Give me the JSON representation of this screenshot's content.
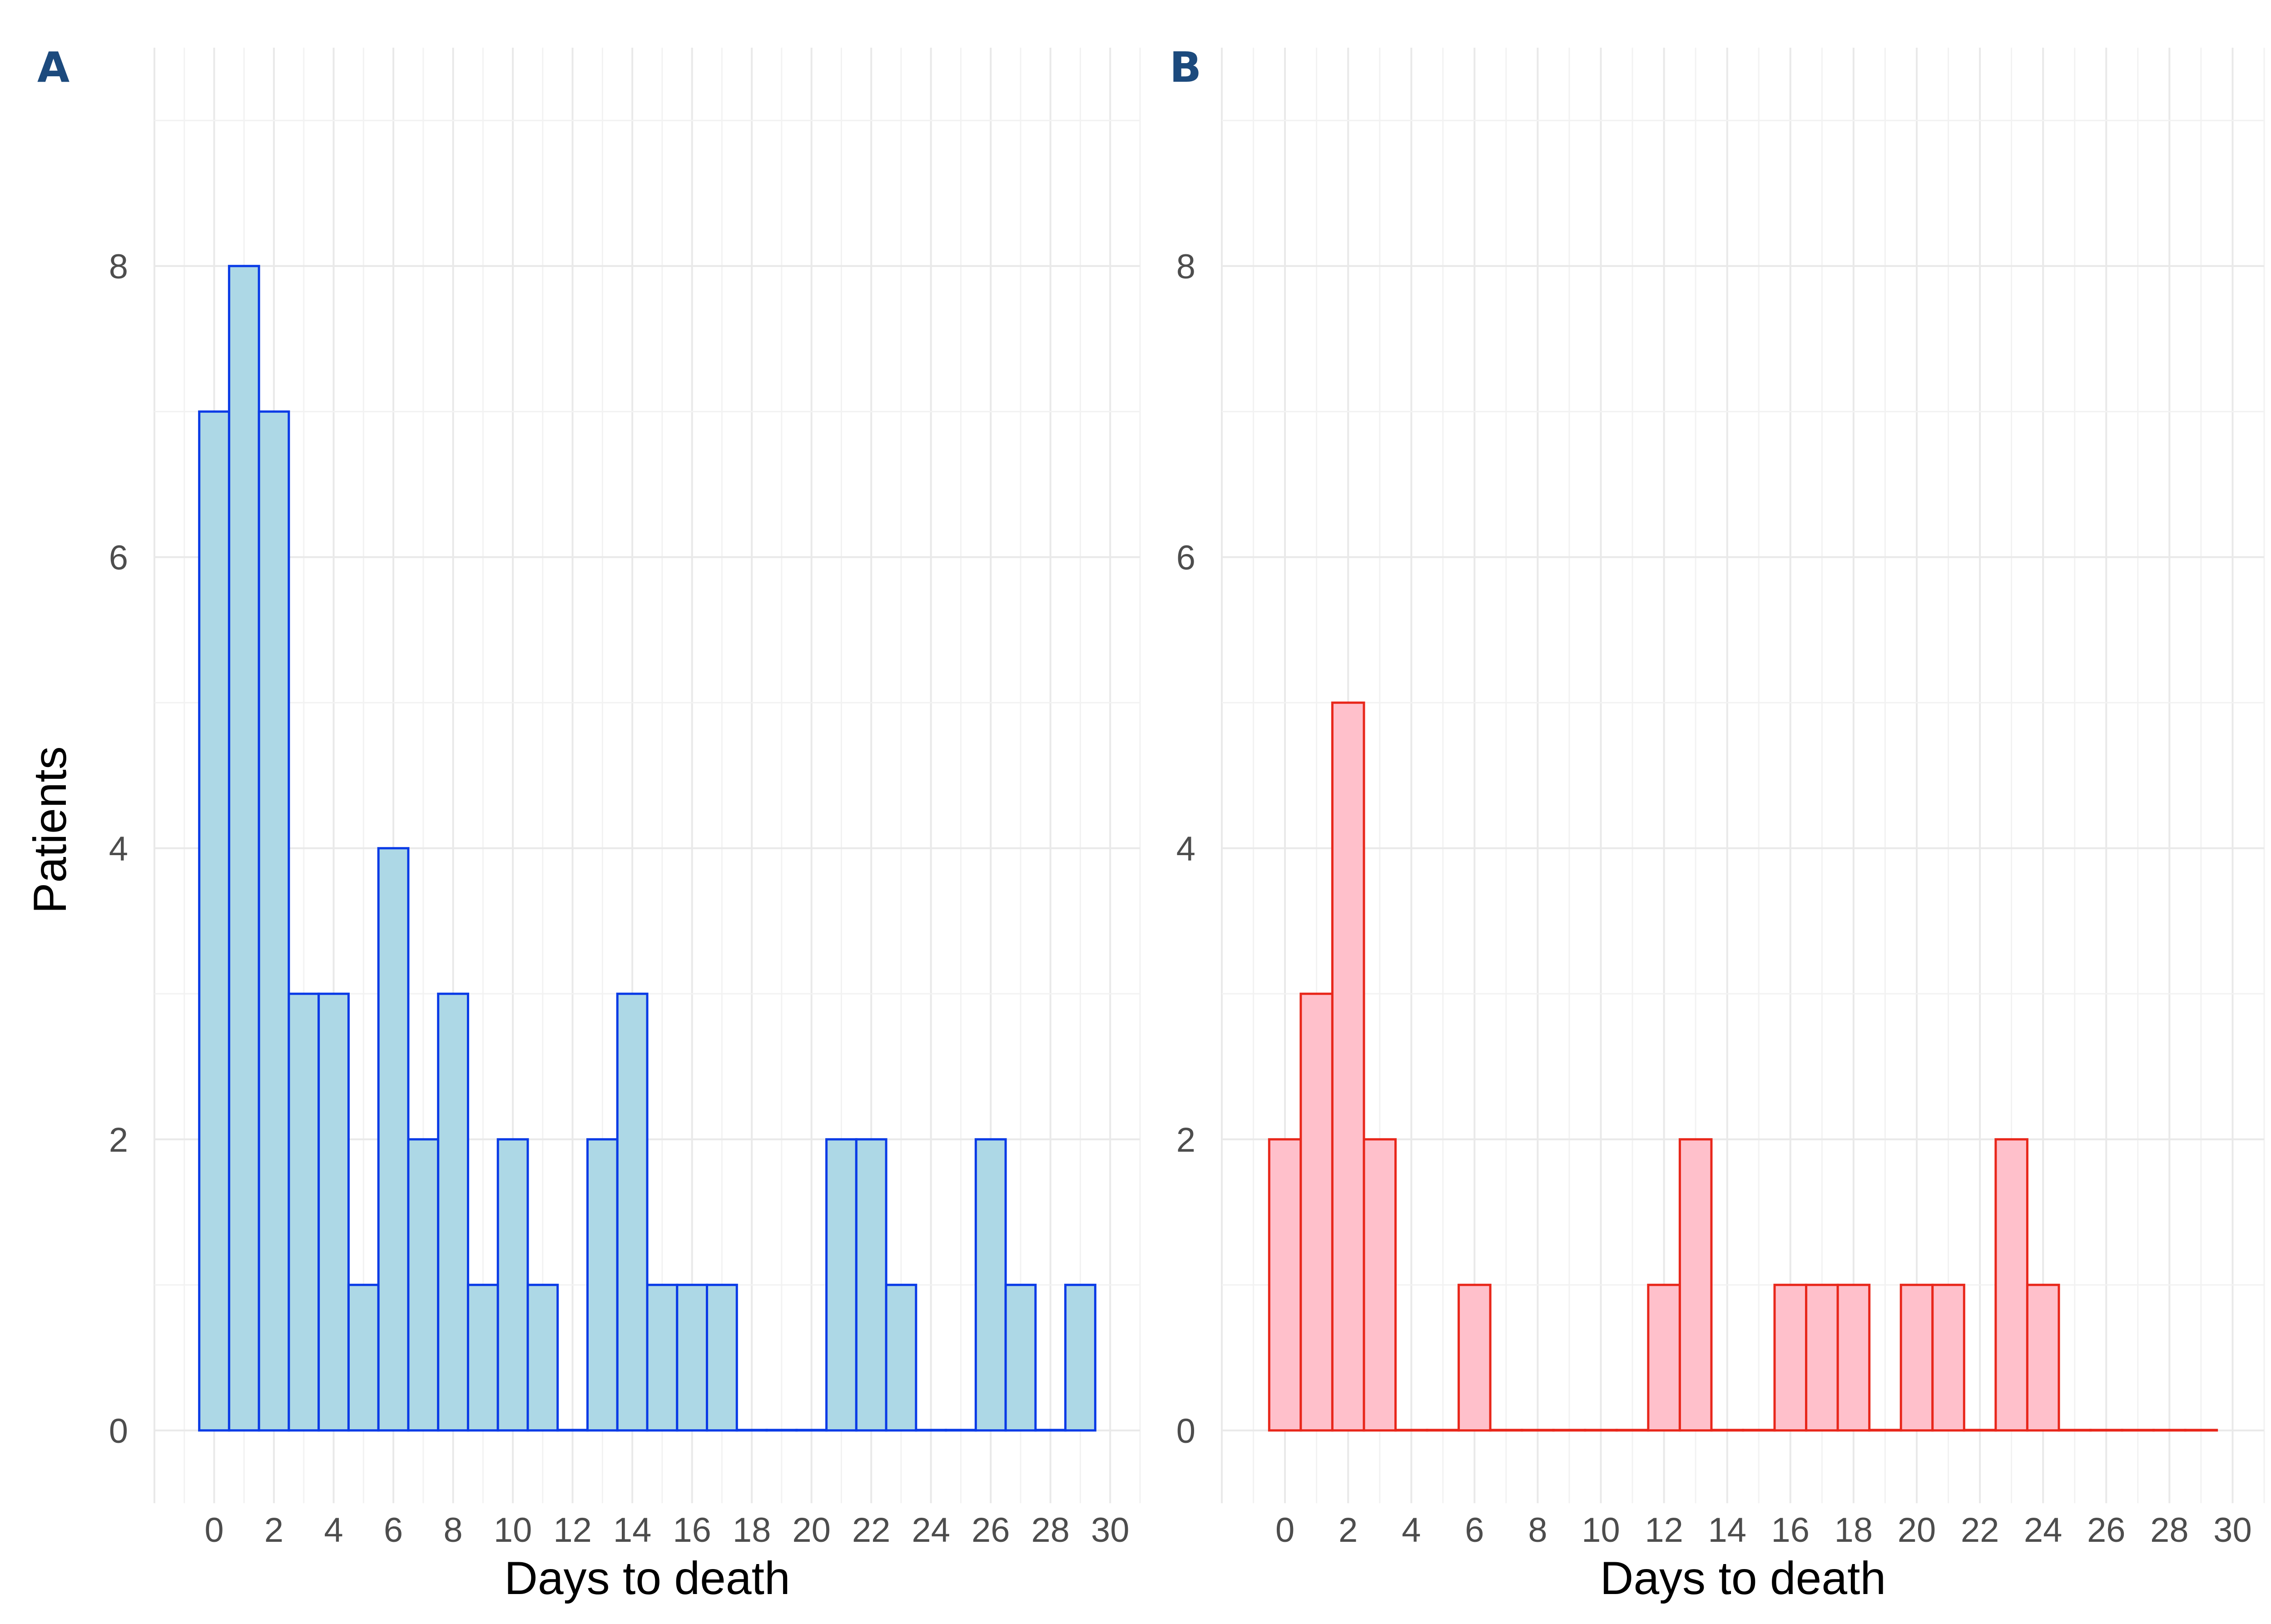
{
  "chart_data": [
    {
      "type": "bar",
      "panel_label": "A",
      "xlabel": "Days to death",
      "ylabel": "Patients",
      "x": [
        0,
        1,
        2,
        3,
        4,
        5,
        6,
        7,
        8,
        9,
        10,
        11,
        12,
        13,
        14,
        15,
        16,
        17,
        18,
        19,
        20,
        21,
        22,
        23,
        24,
        25,
        26,
        27,
        28,
        29
      ],
      "values": [
        7,
        8,
        7,
        3,
        3,
        1,
        4,
        2,
        3,
        1,
        2,
        1,
        0,
        2,
        3,
        1,
        1,
        1,
        0,
        0,
        0,
        2,
        2,
        1,
        0,
        0,
        2,
        1,
        0,
        1
      ],
      "xticks": [
        0,
        2,
        4,
        6,
        8,
        10,
        12,
        14,
        16,
        18,
        20,
        22,
        24,
        26,
        28,
        30
      ],
      "yticks": [
        0,
        2,
        4,
        6,
        8
      ],
      "xlim": [
        -2,
        31
      ],
      "ylim": [
        -0.5,
        9.5
      ],
      "grid": true,
      "fill_color": "#add8e6",
      "edge_color": "#0a3be6"
    },
    {
      "type": "bar",
      "panel_label": "B",
      "xlabel": "Days to death",
      "ylabel": "",
      "x": [
        0,
        1,
        2,
        3,
        4,
        5,
        6,
        7,
        8,
        9,
        10,
        11,
        12,
        13,
        14,
        15,
        16,
        17,
        18,
        19,
        20,
        21,
        22,
        23,
        24,
        25,
        26,
        27,
        28,
        29
      ],
      "values": [
        2,
        3,
        5,
        2,
        0,
        0,
        1,
        0,
        0,
        0,
        0,
        0,
        1,
        2,
        0,
        0,
        1,
        1,
        1,
        0,
        1,
        1,
        0,
        2,
        1,
        0,
        0,
        0,
        0,
        0
      ],
      "xticks": [
        0,
        2,
        4,
        6,
        8,
        10,
        12,
        14,
        16,
        18,
        20,
        22,
        24,
        26,
        28,
        30
      ],
      "yticks": [
        0,
        2,
        4,
        6,
        8
      ],
      "xlim": [
        -2,
        31
      ],
      "ylim": [
        -0.5,
        9.5
      ],
      "grid": true,
      "fill_color": "#ffc0cb",
      "edge_color": "#e8271b"
    }
  ]
}
